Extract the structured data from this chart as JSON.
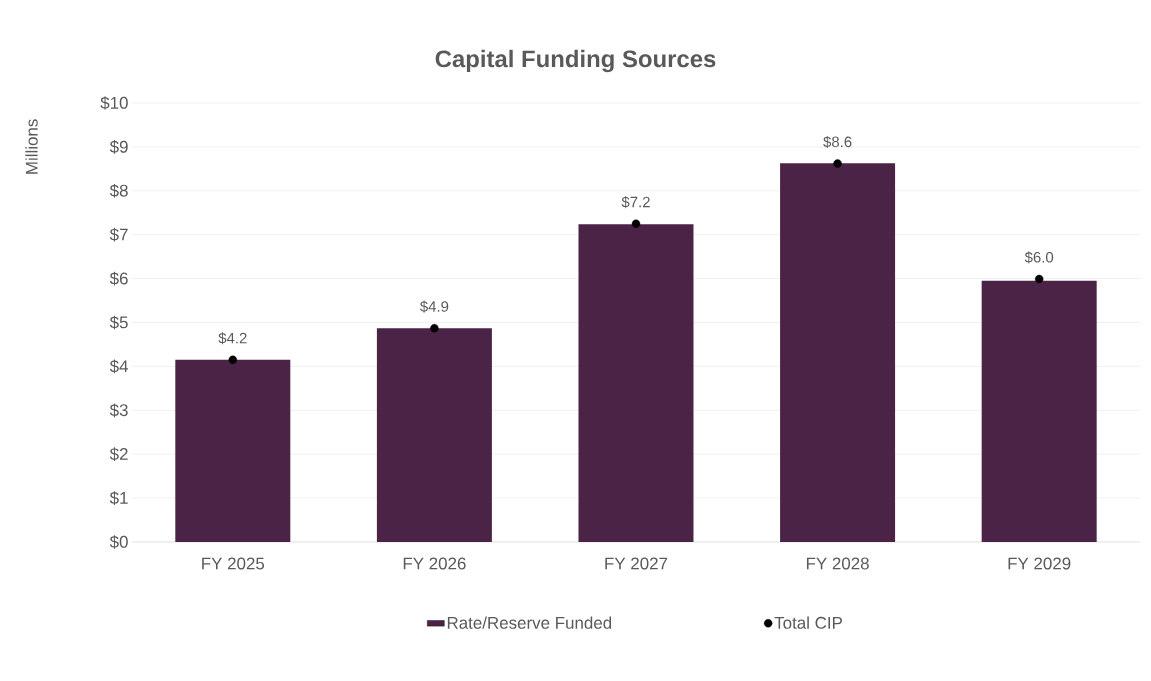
{
  "chart_data": {
    "type": "bar",
    "title": "Capital Funding Sources",
    "ylabel": "Millions",
    "categories": [
      "FY 2025",
      "FY 2026",
      "FY 2027",
      "FY 2028",
      "FY 2029"
    ],
    "series": [
      {
        "name": "Rate/Reserve Funded",
        "color": "#4a2347",
        "values": [
          4.15,
          4.87,
          7.24,
          8.63,
          5.95
        ]
      },
      {
        "name": "Total CIP",
        "type": "scatter",
        "color": "#000000",
        "values": [
          4.15,
          4.87,
          7.25,
          8.62,
          5.99
        ],
        "value_labels": [
          "$4.2",
          "$4.9",
          "$7.2",
          "$8.6",
          "$6.0"
        ]
      }
    ],
    "ylim": [
      0,
      10
    ],
    "yticks": [
      {
        "value": 0,
        "label": "$0"
      },
      {
        "value": 1,
        "label": "$1"
      },
      {
        "value": 2,
        "label": "$2"
      },
      {
        "value": 3,
        "label": "$3"
      },
      {
        "value": 4,
        "label": "$4"
      },
      {
        "value": 5,
        "label": "$5"
      },
      {
        "value": 6,
        "label": "$6"
      },
      {
        "value": 7,
        "label": "$7"
      },
      {
        "value": 8,
        "label": "$8"
      },
      {
        "value": 9,
        "label": "$9"
      },
      {
        "value": 10,
        "label": "$10"
      }
    ],
    "grid": "y",
    "legend": "bottom",
    "marker": "circle"
  }
}
